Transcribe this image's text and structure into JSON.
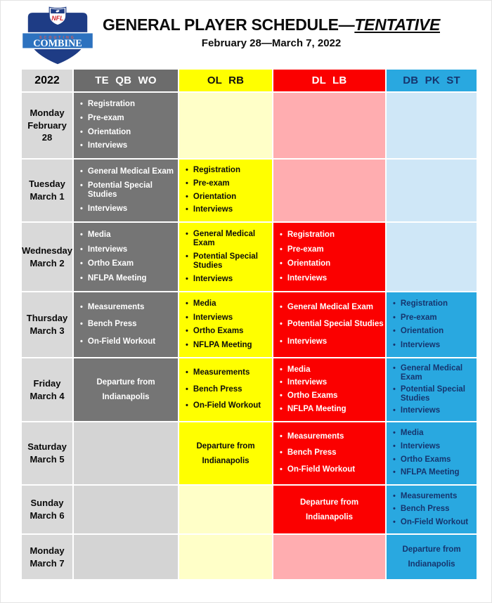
{
  "header": {
    "logo": {
      "nfl": "NFL",
      "scouting": "SCOUTING",
      "combine": "COMBINE"
    },
    "title_main": "GENERAL PLAYER SCHEDULE",
    "title_dash": "—",
    "title_emphasis": "TENTATIVE",
    "subtitle": "February 28—March 7, 2022"
  },
  "table": {
    "year_header": "2022",
    "column_headers": [
      {
        "label": "TE QB WO",
        "theme": "gray"
      },
      {
        "label": "OL RB",
        "theme": "yellow"
      },
      {
        "label": "DL LB",
        "theme": "red"
      },
      {
        "label": "DB PK ST",
        "theme": "blue"
      }
    ],
    "rows": [
      {
        "day": "Monday",
        "date": "February 28",
        "cells": [
          {
            "theme": "gray",
            "state": "active",
            "type": "bullets",
            "items": [
              "Registration",
              "Pre-exam",
              "Orientation",
              "Interviews"
            ]
          },
          {
            "theme": "yellow",
            "state": "pale",
            "type": "empty"
          },
          {
            "theme": "red",
            "state": "pale",
            "type": "empty"
          },
          {
            "theme": "blue",
            "state": "pale",
            "type": "empty"
          }
        ]
      },
      {
        "day": "Tuesday",
        "date": "March 1",
        "cells": [
          {
            "theme": "gray",
            "state": "active",
            "type": "bullets",
            "items": [
              "General Medical Exam",
              "Potential Special Studies",
              "Interviews"
            ]
          },
          {
            "theme": "yellow",
            "state": "active",
            "type": "bullets",
            "items": [
              "Registration",
              "Pre-exam",
              "Orientation",
              "Interviews"
            ]
          },
          {
            "theme": "red",
            "state": "pale",
            "type": "empty"
          },
          {
            "theme": "blue",
            "state": "pale",
            "type": "empty"
          }
        ]
      },
      {
        "day": "Wednesday",
        "date": "March 2",
        "cells": [
          {
            "theme": "gray",
            "state": "active",
            "type": "bullets",
            "items": [
              "Media",
              "Interviews",
              "Ortho Exam",
              "NFLPA Meeting"
            ]
          },
          {
            "theme": "yellow",
            "state": "active",
            "type": "bullets",
            "items": [
              "General Medical Exam",
              "Potential Special Studies",
              "Interviews"
            ]
          },
          {
            "theme": "red",
            "state": "active",
            "type": "bullets",
            "items": [
              "Registration",
              "Pre-exam",
              "Orientation",
              "Interviews"
            ]
          },
          {
            "theme": "blue",
            "state": "pale",
            "type": "empty"
          }
        ]
      },
      {
        "day": "Thursday",
        "date": "March 3",
        "cells": [
          {
            "theme": "gray",
            "state": "active",
            "type": "bullets",
            "items": [
              "Measurements",
              "Bench Press",
              "On-Field Workout"
            ]
          },
          {
            "theme": "yellow",
            "state": "active",
            "type": "bullets",
            "items": [
              "Media",
              "Interviews",
              "Ortho Exams",
              "NFLPA Meeting"
            ]
          },
          {
            "theme": "red",
            "state": "active",
            "type": "bullets",
            "items": [
              "General Medical Exam",
              "Potential Special Studies",
              "Interviews"
            ]
          },
          {
            "theme": "blue",
            "state": "active",
            "type": "bullets",
            "items": [
              "Registration",
              "Pre-exam",
              "Orientation",
              "Interviews"
            ]
          }
        ]
      },
      {
        "day": "Friday",
        "date": "March 4",
        "cells": [
          {
            "theme": "gray",
            "state": "active",
            "type": "center",
            "lines": [
              "Departure from",
              "Indianapolis"
            ]
          },
          {
            "theme": "yellow",
            "state": "active",
            "type": "bullets",
            "items": [
              "Measurements",
              "Bench Press",
              "On-Field Workout"
            ]
          },
          {
            "theme": "red",
            "state": "active",
            "type": "bullets",
            "items": [
              "Media",
              "Interviews",
              "Ortho Exams",
              "NFLPA Meeting"
            ]
          },
          {
            "theme": "blue",
            "state": "active",
            "type": "bullets",
            "items": [
              "General Medical Exam",
              "Potential Special Studies",
              "Interviews"
            ]
          }
        ]
      },
      {
        "day": "Saturday",
        "date": "March 5",
        "cells": [
          {
            "theme": "gray",
            "state": "inactive",
            "type": "empty"
          },
          {
            "theme": "yellow",
            "state": "active",
            "type": "center",
            "lines": [
              "Departure from",
              "Indianapolis"
            ]
          },
          {
            "theme": "red",
            "state": "active",
            "type": "bullets",
            "items": [
              "Measurements",
              "Bench Press",
              "On-Field Workout"
            ]
          },
          {
            "theme": "blue",
            "state": "active",
            "type": "bullets",
            "items": [
              "Media",
              "Interviews",
              "Ortho Exams",
              "NFLPA Meeting"
            ]
          }
        ]
      },
      {
        "day": "Sunday",
        "date": "March 6",
        "cells": [
          {
            "theme": "gray",
            "state": "inactive",
            "type": "empty"
          },
          {
            "theme": "yellow",
            "state": "pale",
            "type": "empty"
          },
          {
            "theme": "red",
            "state": "active",
            "type": "center",
            "lines": [
              "Departure from",
              "Indianapolis"
            ]
          },
          {
            "theme": "blue",
            "state": "active",
            "type": "bullets",
            "items": [
              "Measurements",
              "Bench Press",
              "On-Field Workout"
            ]
          }
        ]
      },
      {
        "day": "Monday",
        "date": "March 7",
        "cells": [
          {
            "theme": "gray",
            "state": "inactive",
            "type": "empty"
          },
          {
            "theme": "yellow",
            "state": "pale",
            "type": "empty"
          },
          {
            "theme": "red",
            "state": "pale",
            "type": "empty"
          },
          {
            "theme": "blue",
            "state": "active",
            "type": "center",
            "lines": [
              "Departure from",
              "Indianapolis"
            ]
          }
        ]
      }
    ]
  },
  "colors": {
    "gray_header": "#6c6c6c",
    "gray_active": "#757575",
    "gray_inactive": "#d4d4d4",
    "date_column": "#d9d9d9",
    "yellow_active": "#ffff00",
    "yellow_pale": "#ffffc8",
    "red_active": "#fb0000",
    "red_pale": "#ffadb0",
    "blue_active": "#29a8e0",
    "blue_pale": "#cfe7f7",
    "blue_text": "#16356e",
    "logo_navy": "#1e3c85",
    "logo_banner_blue": "#2d72bf",
    "logo_red": "#d3222a",
    "grid_line": "#ffffff"
  }
}
